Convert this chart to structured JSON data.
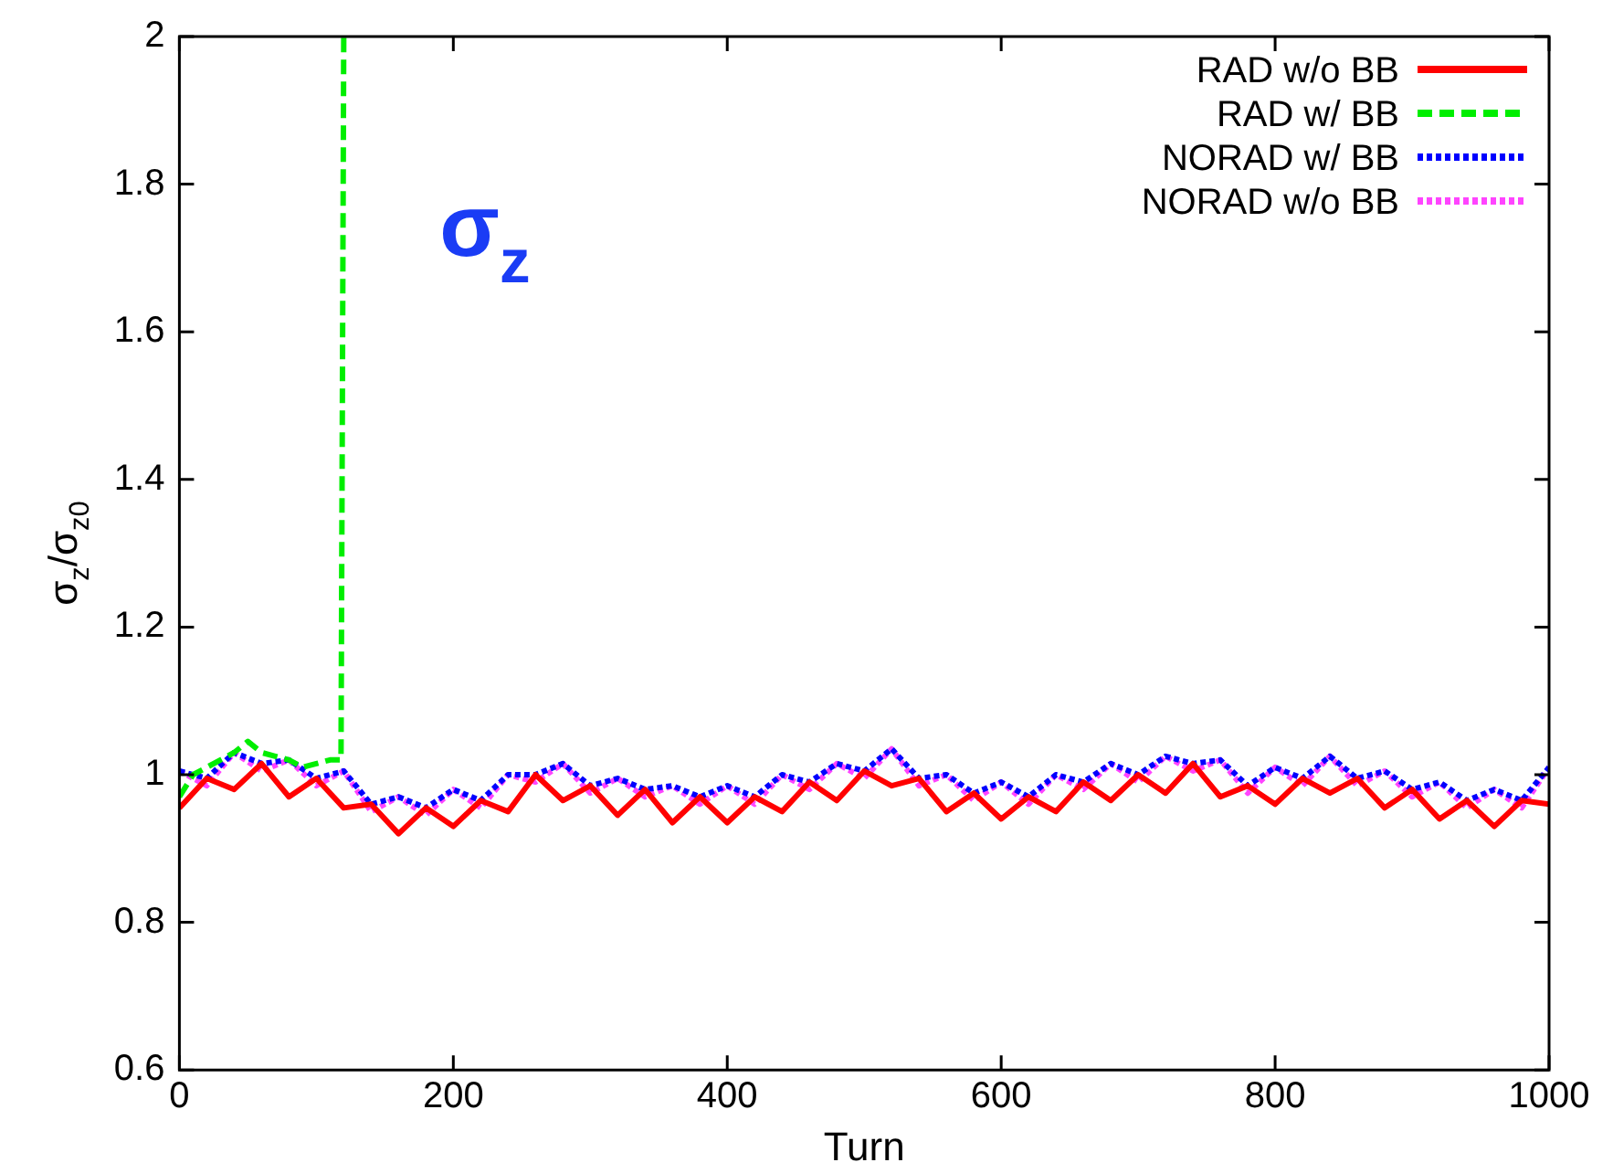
{
  "chart_data": {
    "type": "line",
    "xlabel": "Turn",
    "ylabel": "σ$_{z}$/σ$_{z0}$",
    "annotations": [
      "σ$_{z}$"
    ],
    "x": [
      0,
      20,
      40,
      60,
      80,
      100,
      120,
      140,
      160,
      180,
      200,
      220,
      240,
      260,
      280,
      300,
      320,
      340,
      360,
      380,
      400,
      420,
      440,
      460,
      480,
      500,
      520,
      540,
      560,
      580,
      600,
      620,
      640,
      660,
      680,
      700,
      720,
      740,
      760,
      780,
      800,
      820,
      840,
      860,
      880,
      900,
      920,
      940,
      960,
      980,
      1000
    ],
    "xlim": [
      0,
      1000
    ],
    "xticks": [
      0,
      200,
      400,
      600,
      800,
      1000
    ],
    "ylim": [
      0.6,
      2
    ],
    "yticks": [
      0.6,
      0.8,
      1,
      1.2,
      1.4,
      1.6,
      1.8,
      2
    ],
    "grid": false,
    "legend": "top right",
    "marker": "none",
    "series": [
      {
        "name": "RAD w/o BB",
        "color": "#ff0000",
        "line_style": "solid",
        "values": [
          0.955,
          0.995,
          0.98,
          1.015,
          0.97,
          0.995,
          0.955,
          0.96,
          0.92,
          0.955,
          0.93,
          0.965,
          0.95,
          1.0,
          0.965,
          0.985,
          0.945,
          0.98,
          0.935,
          0.97,
          0.935,
          0.97,
          0.95,
          0.99,
          0.965,
          1.005,
          0.985,
          0.995,
          0.95,
          0.975,
          0.94,
          0.97,
          0.95,
          0.99,
          0.965,
          1.0,
          0.975,
          1.015,
          0.97,
          0.985,
          0.96,
          0.995,
          0.975,
          0.995,
          0.955,
          0.98,
          0.94,
          0.965,
          0.93,
          0.965,
          0.96
        ]
      },
      {
        "name": "RAD w/ BB",
        "color": "#00ee00",
        "line_style": "dashed",
        "x": [
          0,
          10,
          20,
          30,
          40,
          50,
          60,
          70,
          80,
          90,
          100,
          110,
          118,
          120
        ],
        "values": [
          0.97,
          1.0,
          1.01,
          1.02,
          1.03,
          1.045,
          1.03,
          1.025,
          1.02,
          1.01,
          1.015,
          1.02,
          1.02,
          2.0
        ]
      },
      {
        "name": "NORAD w/ BB",
        "color": "#0000ff",
        "line_style": "dotted",
        "values": [
          1.005,
          0.995,
          1.03,
          1.015,
          1.02,
          0.995,
          1.005,
          0.96,
          0.97,
          0.955,
          0.98,
          0.965,
          1.0,
          1.0,
          1.015,
          0.985,
          0.995,
          0.98,
          0.985,
          0.97,
          0.985,
          0.97,
          1.0,
          0.99,
          1.015,
          1.005,
          1.035,
          0.995,
          1.0,
          0.975,
          0.99,
          0.97,
          1.0,
          0.99,
          1.015,
          1.0,
          1.025,
          1.015,
          1.02,
          0.985,
          1.01,
          0.995,
          1.025,
          0.995,
          1.005,
          0.98,
          0.99,
          0.965,
          0.98,
          0.965,
          1.01
        ]
      },
      {
        "name": "NORAD w/o BB",
        "color": "#ff44ff",
        "line_style": "dotted",
        "values": [
          1.005,
          0.985,
          1.03,
          1.005,
          1.02,
          0.985,
          1.005,
          0.95,
          0.97,
          0.945,
          0.98,
          0.955,
          1.0,
          0.99,
          1.015,
          0.975,
          0.995,
          0.97,
          0.985,
          0.96,
          0.985,
          0.96,
          1.0,
          0.98,
          1.015,
          0.995,
          1.035,
          0.985,
          1.0,
          0.965,
          0.99,
          0.96,
          1.0,
          0.98,
          1.015,
          0.99,
          1.025,
          1.005,
          1.02,
          0.975,
          1.01,
          0.985,
          1.025,
          0.985,
          1.005,
          0.97,
          0.99,
          0.955,
          0.98,
          0.955,
          1.01
        ]
      }
    ]
  }
}
